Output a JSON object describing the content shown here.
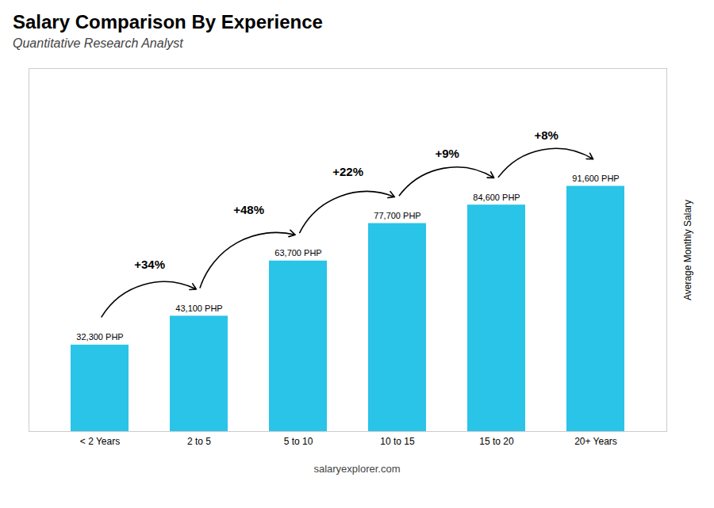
{
  "chart_data": {
    "type": "bar",
    "title": "Salary Comparison By Experience",
    "subtitle": "Quantitative Research Analyst",
    "ylabel": "Average Monthly Salary",
    "caption": "salaryexplorer.com",
    "categories": [
      "< 2 Years",
      "2 to 5",
      "5 to 10",
      "10 to 15",
      "15 to 20",
      "20+ Years"
    ],
    "values": [
      32300,
      43100,
      63700,
      77700,
      84600,
      91600
    ],
    "value_labels": [
      "32,300 PHP",
      "43,100 PHP",
      "63,700 PHP",
      "77,700 PHP",
      "84,600 PHP",
      "91,600 PHP"
    ],
    "data_labels": true,
    "annotations": [
      "+34%",
      "+48%",
      "+22%",
      "+9%",
      "+8%"
    ],
    "color": "#29c4e8",
    "ylim": [
      0,
      135568
    ],
    "tick_labels": "x",
    "grid": false
  }
}
